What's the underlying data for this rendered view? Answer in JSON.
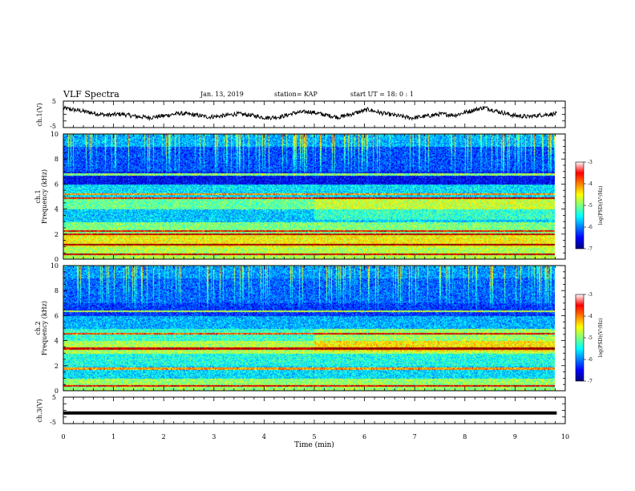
{
  "header": {
    "title": "VLF Spectra",
    "date": "Jan. 13, 2019",
    "station": "station= KAP",
    "start": "start  UT =   18: 0  : 1"
  },
  "chart_data": [
    {
      "type": "line",
      "panel": "channel 1 waveform",
      "ylabel": "ch.1(V)",
      "ylim": [
        -5,
        5
      ],
      "yticks": [
        "5",
        "-5"
      ],
      "x_range_min": [
        0,
        9.83
      ],
      "approx_y_values": [
        2.3,
        1.5,
        0.5,
        -0.3,
        0.1,
        -0.8,
        -1.2,
        -0.5,
        0.4,
        -0.2,
        -1.0,
        -0.6,
        0.2,
        -0.4,
        -1.3,
        -0.9,
        0.6,
        1.0,
        -0.2,
        -1.1,
        0.3,
        1.8,
        0.4,
        -0.5,
        -1.4,
        -0.7,
        0.1,
        -0.3,
        1.2,
        2.6,
        1.0,
        -0.4,
        -0.9,
        -0.2,
        0.2
      ]
    },
    {
      "type": "heatmap",
      "panel": "channel 1 spectrogram",
      "ylabel": "ch.1\nFrequency (kHz)",
      "ylim": [
        0,
        10
      ],
      "yticks": [
        "0",
        "2",
        "4",
        "6",
        "8",
        "10"
      ],
      "colorbar": {
        "label": "log(PSD)(V²/Hz)",
        "range": [
          -7,
          -3
        ],
        "ticks": [
          "-3",
          "-4",
          "-5",
          "-6",
          "-7"
        ]
      },
      "approx_background_by_frequency_kHz": {
        "0-1": -4.8,
        "1-2": -4.5,
        "2-3": -5.0,
        "3-4": -5.7,
        "4-5": -5.1,
        "5-6": -5.6,
        "6-7": -6.5,
        "7-9": -6.2,
        "9-10": -5.8
      },
      "approx_narrowband_lines_kHz": [
        0.4,
        1.2,
        2.0,
        2.3,
        4.9,
        5.2,
        6.8
      ]
    },
    {
      "type": "heatmap",
      "panel": "channel 2 spectrogram",
      "ylabel": "ch.2\nFrequency (kHz)",
      "ylim": [
        0,
        10
      ],
      "yticks": [
        "0",
        "2",
        "4",
        "6",
        "8",
        "10"
      ],
      "colorbar": {
        "label": "log(PSD)(V²/Hz)",
        "range": [
          -7,
          -3
        ],
        "ticks": [
          "-3",
          "-4",
          "-5",
          "-6",
          "-7"
        ]
      },
      "approx_background_by_frequency_kHz": {
        "0-1": -4.9,
        "1-2": -5.6,
        "2-3": -5.4,
        "3-4": -4.8,
        "4-5": -5.3,
        "5-6": -5.8,
        "6-7": -6.3,
        "7-9": -6.1,
        "9-10": -5.9
      },
      "approx_narrowband_lines_kHz": [
        0.4,
        1.8,
        3.4,
        4.6,
        6.4
      ]
    },
    {
      "type": "line",
      "panel": "channel 3 waveform",
      "ylabel": "ch.3(V)",
      "ylim": [
        -5,
        5
      ],
      "yticks": [
        "5",
        "-5"
      ],
      "x_range_min": [
        0,
        9.83
      ],
      "constant_value": -1
    }
  ],
  "x_axis": {
    "label": "Time (min)",
    "range": [
      0,
      10
    ],
    "ticks": [
      "0",
      "1",
      "2",
      "3",
      "4",
      "5",
      "6",
      "7",
      "8",
      "9",
      "10"
    ]
  },
  "colors": {
    "jet": [
      "#00007f",
      "#0000ff",
      "#007fff",
      "#00ffff",
      "#7fff7f",
      "#ffff00",
      "#ff7f00",
      "#ff0000",
      "#7f0000"
    ]
  }
}
